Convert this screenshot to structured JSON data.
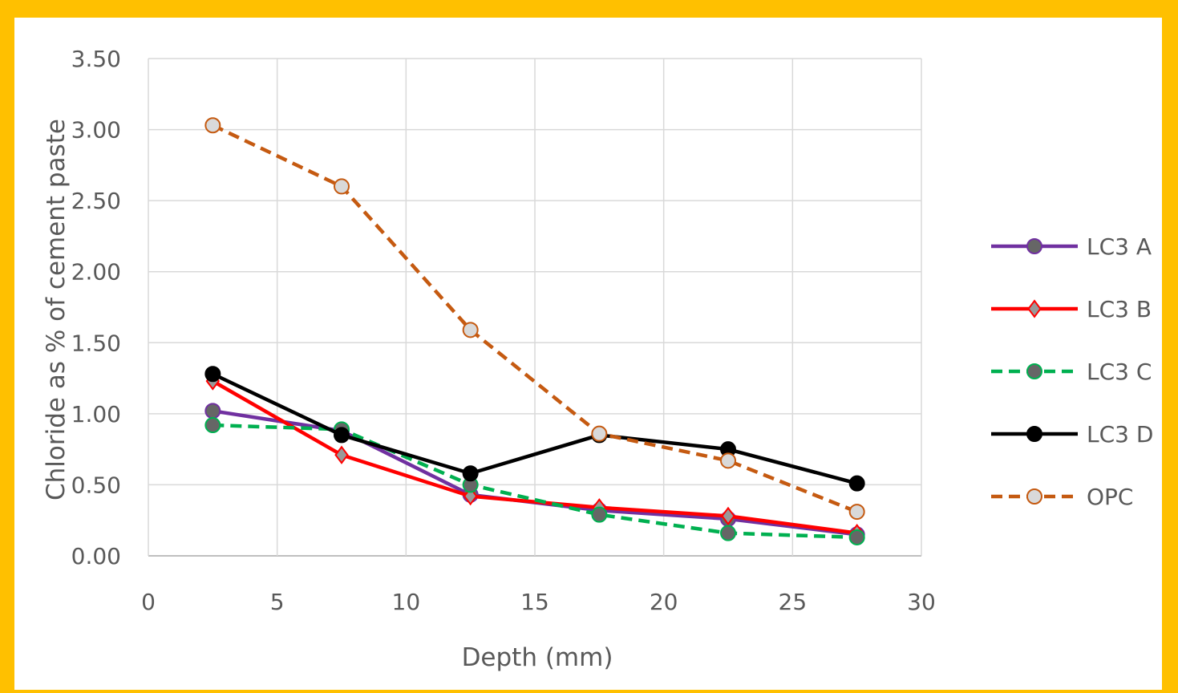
{
  "chart_data": {
    "type": "line",
    "xlabel": "Depth (mm)",
    "ylabel": "Chloride as % of cement paste",
    "xlim": [
      0,
      30
    ],
    "ylim": [
      0,
      3.5
    ],
    "x_ticks": [
      "0",
      "5",
      "10",
      "15",
      "20",
      "25",
      "30"
    ],
    "y_ticks": [
      "0.00",
      "0.50",
      "1.00",
      "1.50",
      "2.00",
      "2.50",
      "3.00",
      "3.50"
    ],
    "grid": true,
    "legend_position": "right",
    "x": [
      2.5,
      7.5,
      12.5,
      17.5,
      22.5,
      27.5
    ],
    "series": [
      {
        "name": "LC3 A",
        "values": [
          1.02,
          0.88,
          0.43,
          0.32,
          0.26,
          0.15
        ],
        "color": "#7030A0",
        "dash": "solid",
        "marker": "circle",
        "marker_fill": "#666666"
      },
      {
        "name": "LC3 B",
        "values": [
          1.23,
          0.71,
          0.42,
          0.34,
          0.28,
          0.16
        ],
        "color": "#FF0000",
        "dash": "solid",
        "marker": "diamond",
        "marker_fill": "#999999"
      },
      {
        "name": "LC3 C",
        "values": [
          0.92,
          0.89,
          0.5,
          0.29,
          0.16,
          0.13
        ],
        "color": "#00B050",
        "dash": "dashed",
        "marker": "circle",
        "marker_fill": "#666666"
      },
      {
        "name": "LC3 D",
        "values": [
          1.28,
          0.85,
          0.58,
          0.85,
          0.75,
          0.51
        ],
        "color": "#000000",
        "dash": "solid",
        "marker": "circle",
        "marker_fill": "#000000"
      },
      {
        "name": "OPC",
        "values": [
          3.03,
          2.6,
          1.59,
          0.86,
          0.67,
          0.31
        ],
        "color": "#C55A11",
        "dash": "dashed",
        "marker": "circle",
        "marker_fill": "#D9D9D9"
      }
    ]
  }
}
